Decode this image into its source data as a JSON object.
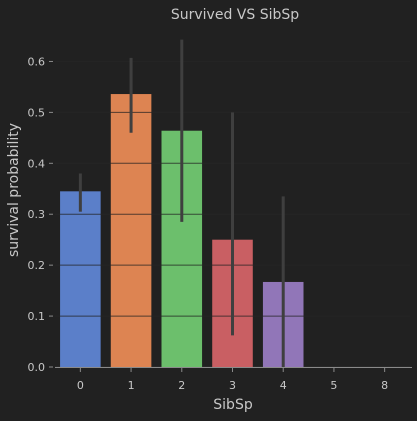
{
  "colors": {
    "background": "#212121",
    "grid": "#2e2e2e",
    "text": "#c8c8c8",
    "title": "#c8c8c8",
    "axis": "#8a8a8a",
    "errorbar": "#3f3f3f",
    "bars": [
      "#5b7fc9",
      "#dd8452",
      "#6cbf6c",
      "#c95f63",
      "#9176b8",
      "#8c6e5b",
      "#d88ec4"
    ]
  },
  "chart_data": {
    "type": "bar",
    "title": "Survived VS SibSp",
    "xlabel": "SibSp",
    "ylabel": "survival probability",
    "categories": [
      "0",
      "1",
      "2",
      "3",
      "4",
      "5",
      "8"
    ],
    "values": [
      0.345,
      0.536,
      0.464,
      0.25,
      0.167,
      0.0,
      0.0
    ],
    "error_low": [
      0.305,
      0.46,
      0.285,
      0.062,
      0.0,
      0.0,
      0.0
    ],
    "error_high": [
      0.38,
      0.607,
      0.643,
      0.5,
      0.335,
      0.0,
      0.0
    ],
    "ylim": [
      0,
      0.65
    ],
    "yticks": [
      0.0,
      0.1,
      0.2,
      0.3,
      0.4,
      0.5,
      0.6
    ],
    "ytick_labels": [
      "0.0",
      "0.1",
      "0.2",
      "0.3",
      "0.4",
      "0.5",
      "0.6"
    ],
    "grid": true
  }
}
